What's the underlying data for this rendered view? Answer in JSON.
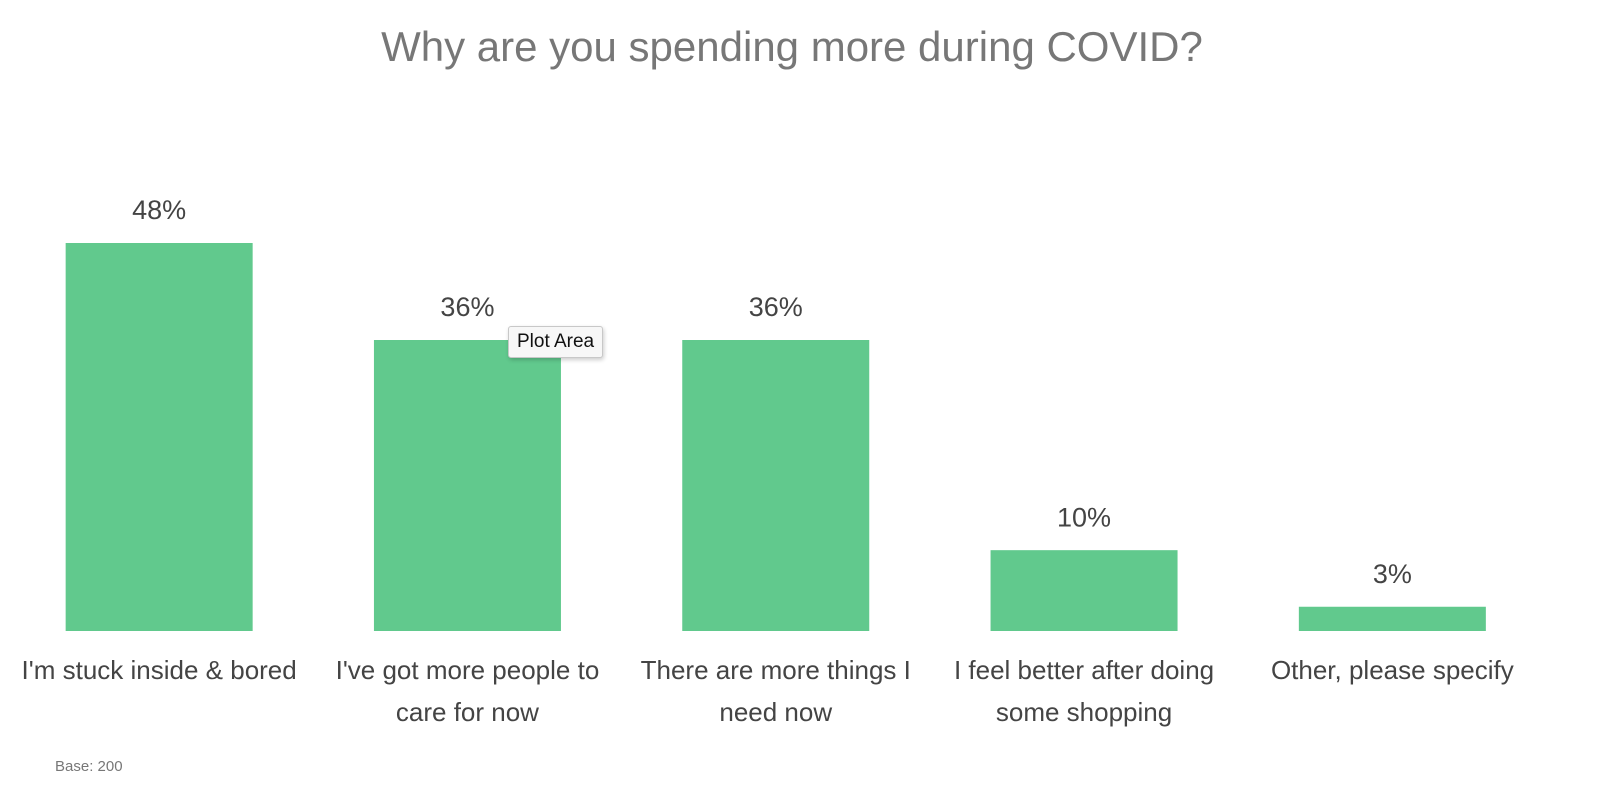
{
  "chart_data": {
    "type": "bar",
    "title": "Why are you spending more during COVID?",
    "categories": [
      "I'm stuck inside & bored",
      "I've got more people to care for now",
      "There are more things I need now",
      "I feel better after doing some shopping",
      "Other, please specify"
    ],
    "values": [
      48,
      36,
      36,
      10,
      3
    ],
    "value_labels": [
      "48%",
      "36%",
      "36%",
      "10%",
      "3%"
    ],
    "color": "#61c98d",
    "note": "Base: 200",
    "tooltip": "Plot Area"
  }
}
